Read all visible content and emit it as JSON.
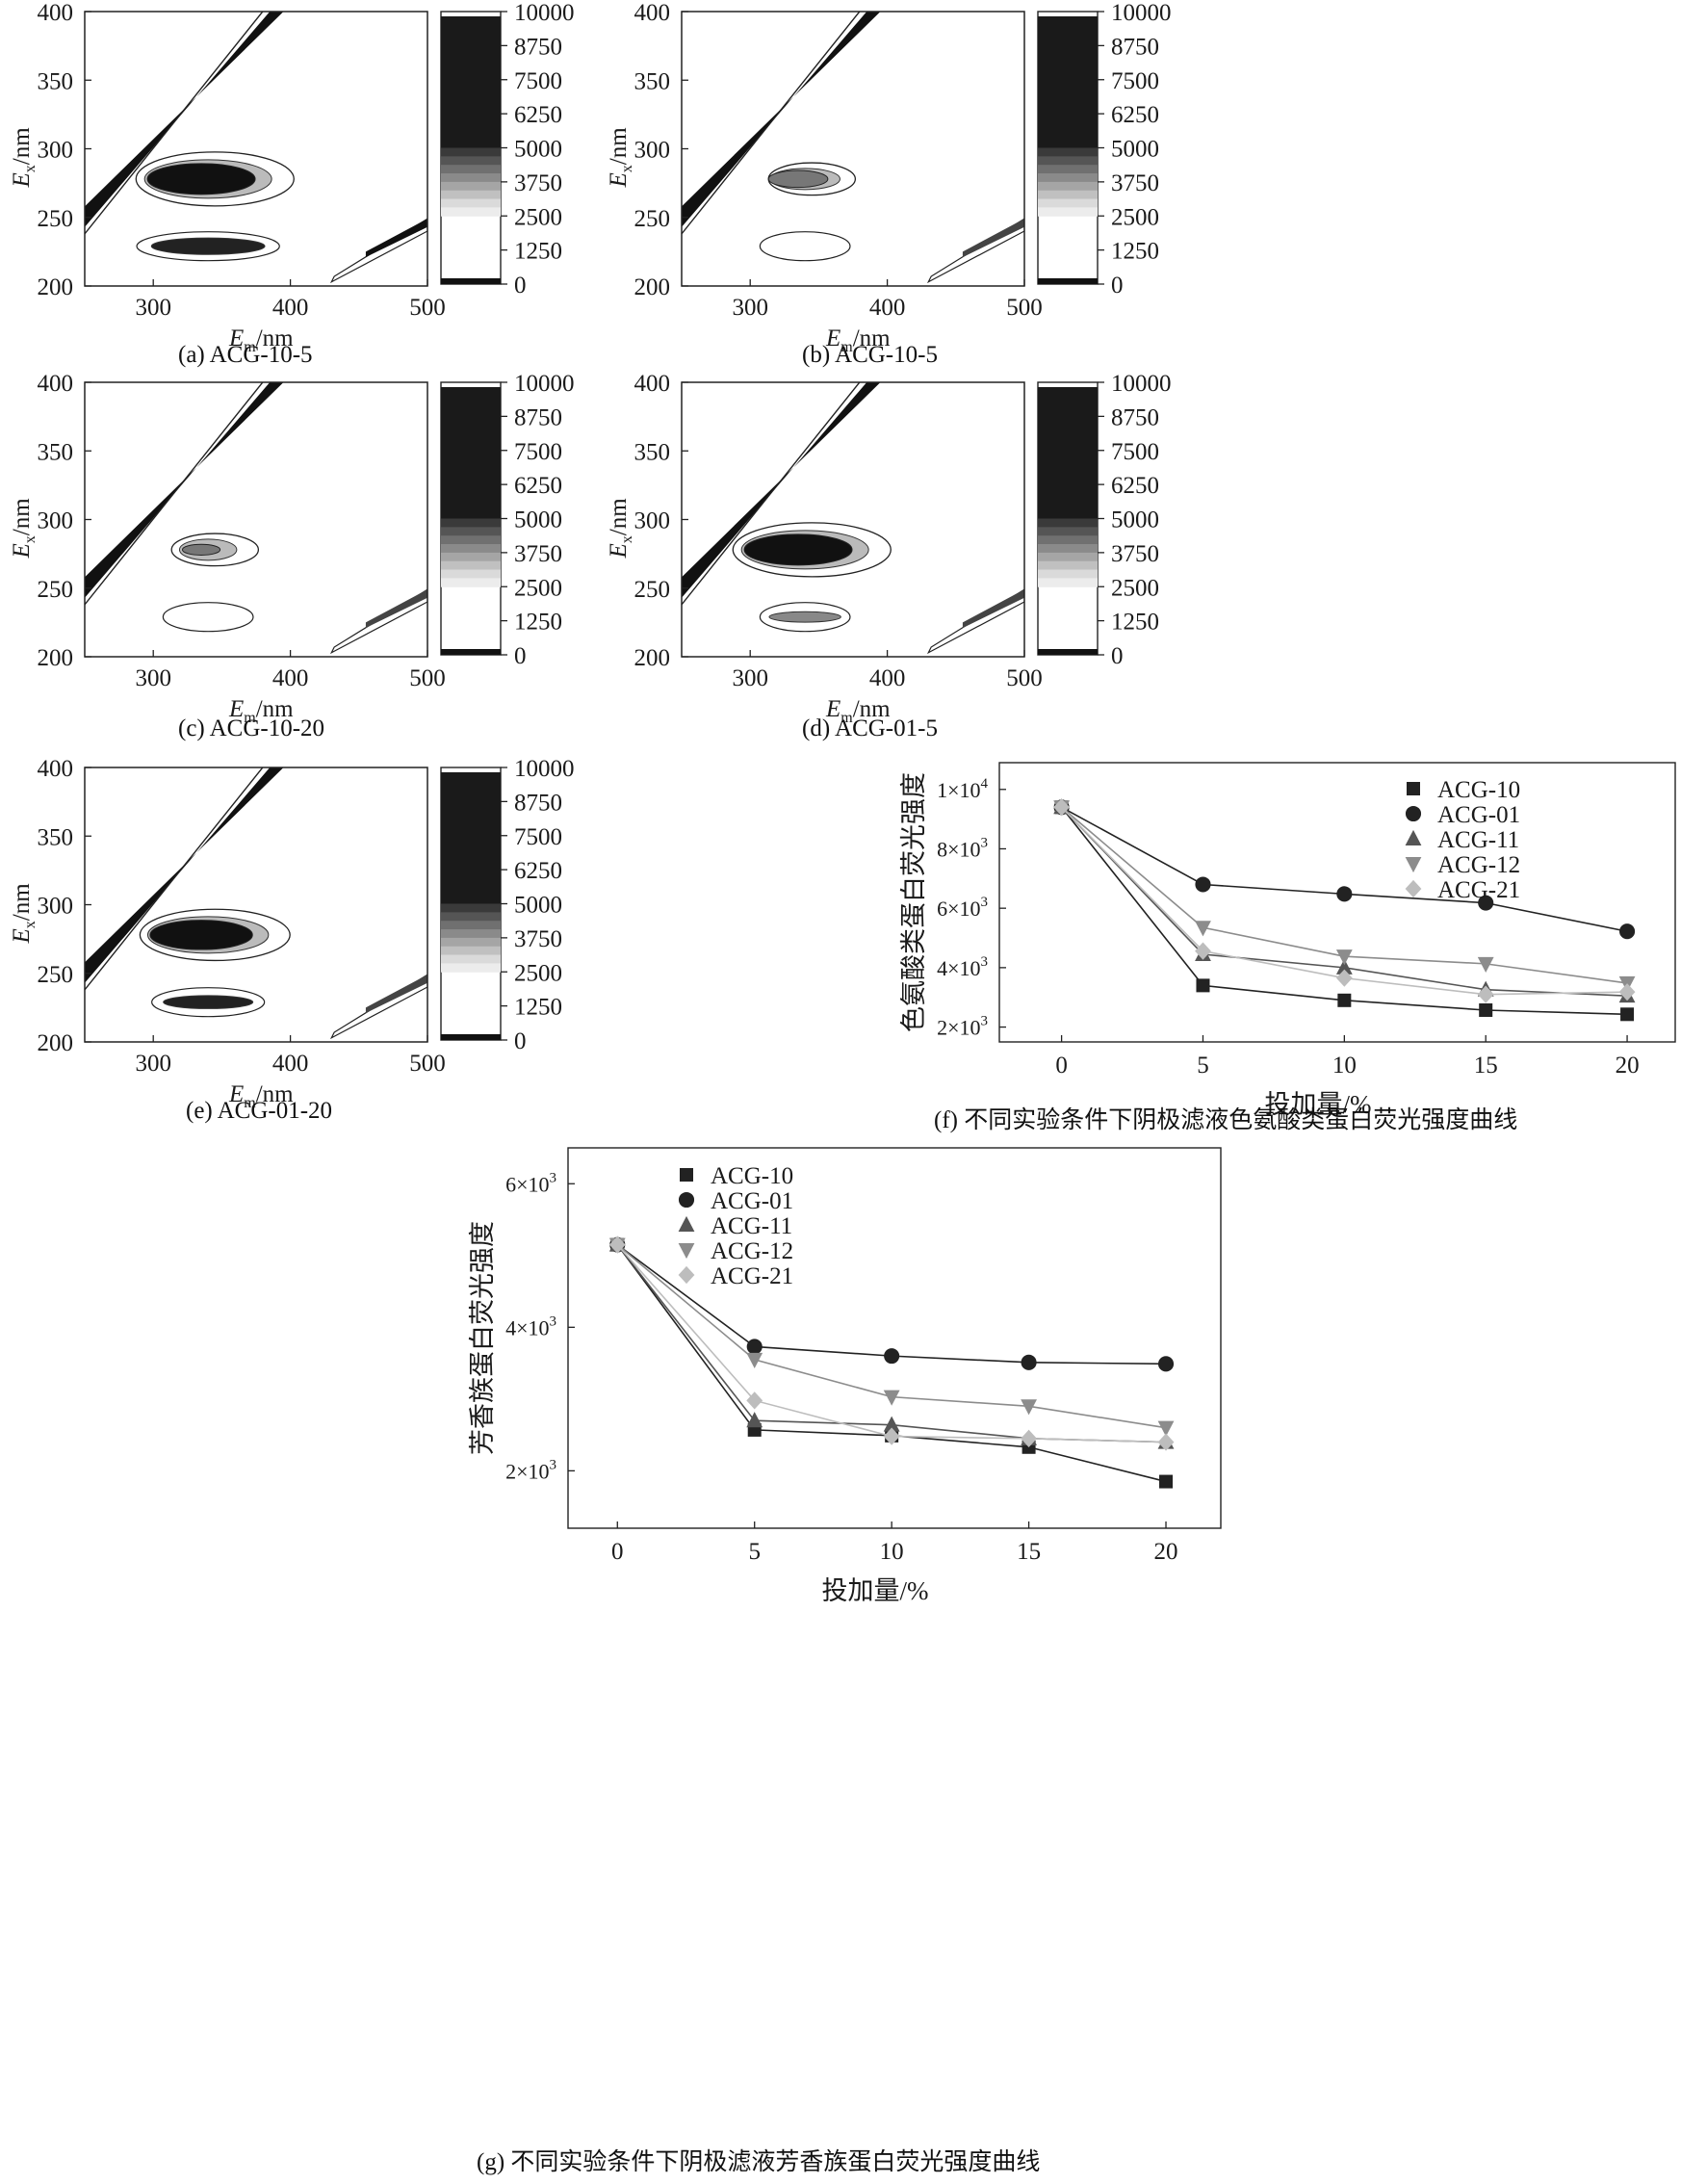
{
  "eem_common": {
    "x_ticks": [
      300,
      400,
      500
    ],
    "y_ticks": [
      200,
      250,
      300,
      350,
      400
    ],
    "x_label_main": "E",
    "x_label_sub": "m",
    "x_label_unit": "/nm",
    "y_label_main": "E",
    "y_label_sub": "x",
    "y_label_unit": "/nm",
    "colorbar_ticks": [
      "10000",
      "8750",
      "7500",
      "6250",
      "5000",
      "3750",
      "2500",
      "1250",
      "0"
    ],
    "x_range": [
      250,
      500
    ],
    "y_range": [
      200,
      400
    ]
  },
  "panels": [
    {
      "id": "a",
      "caption": "(a) ACG-10-5",
      "intensity": 1.0,
      "peakA": 1.0,
      "peakB": 0.95,
      "raman": 0.9
    },
    {
      "id": "b",
      "caption": "(b) ACG-10-5",
      "intensity": 0.5,
      "peakA": 0.55,
      "peakB": 0.25,
      "raman": 0.5
    },
    {
      "id": "c",
      "caption": "(c) ACG-10-20",
      "intensity": 0.35,
      "peakA": 0.35,
      "peakB": 0.2,
      "raman": 0.6
    },
    {
      "id": "d",
      "caption": "(d) ACG-01-5",
      "intensity": 1.0,
      "peakA": 1.0,
      "peakB": 0.6,
      "raman": 0.6
    },
    {
      "id": "e",
      "caption": "(e) ACG-01-20",
      "intensity": 0.9,
      "peakA": 0.95,
      "peakB": 0.75,
      "raman": 0.6
    }
  ],
  "chart_data": [
    {
      "type": "line",
      "id": "f",
      "caption": "(f) 不同实验条件下阴极滤液色氨酸类蛋白荧光强度曲线",
      "xlabel": "投加量/%",
      "ylabel": "色氨酸类蛋白荧光强度",
      "x": [
        0,
        5,
        10,
        15,
        20
      ],
      "x_ticks": [
        "0",
        "5",
        "10",
        "15",
        "20"
      ],
      "y_ticks": [
        {
          "value": 2000,
          "mant": "2×10",
          "exp": "3"
        },
        {
          "value": 4000,
          "mant": "4×10",
          "exp": "3"
        },
        {
          "value": 6000,
          "mant": "6×10",
          "exp": "3"
        },
        {
          "value": 8000,
          "mant": "8×10",
          "exp": "3"
        },
        {
          "value": 10000,
          "mant": "1×10",
          "exp": "4"
        }
      ],
      "xlim": [
        -2.2,
        21.7
      ],
      "ylim": [
        1500,
        10900
      ],
      "series": [
        {
          "name": "ACG-10",
          "marker": "square",
          "color": "#222222",
          "values": [
            9400,
            3400,
            2900,
            2570,
            2430
          ]
        },
        {
          "name": "ACG-01",
          "marker": "circle",
          "color": "#222222",
          "values": [
            9400,
            6800,
            6480,
            6180,
            5220
          ]
        },
        {
          "name": "ACG-11",
          "marker": "triangle-up",
          "color": "#555555",
          "values": [
            9400,
            4450,
            4000,
            3260,
            3050
          ]
        },
        {
          "name": "ACG-12",
          "marker": "triangle-down",
          "color": "#8c8c8c",
          "values": [
            9400,
            5350,
            4380,
            4130,
            3480
          ]
        },
        {
          "name": "ACG-21",
          "marker": "diamond",
          "color": "#bdbdbd",
          "values": [
            9400,
            4560,
            3650,
            3100,
            3180
          ]
        }
      ]
    },
    {
      "type": "line",
      "id": "g",
      "caption": "(g) 不同实验条件下阴极滤液芳香族蛋白荧光强度曲线",
      "xlabel": "投加量/%",
      "ylabel": "芳香族蛋白荧光强度",
      "x": [
        0,
        5,
        10,
        15,
        20
      ],
      "x_ticks": [
        "0",
        "5",
        "10",
        "15",
        "20"
      ],
      "y_ticks": [
        {
          "value": 2000,
          "mant": "2×10",
          "exp": "3"
        },
        {
          "value": 4000,
          "mant": "4×10",
          "exp": "3"
        },
        {
          "value": 6000,
          "mant": "6×10",
          "exp": "3"
        }
      ],
      "xlim": [
        -1.8,
        22.0
      ],
      "ylim": [
        1200,
        6500
      ],
      "series": [
        {
          "name": "ACG-10",
          "marker": "square",
          "color": "#222222",
          "values": [
            5150,
            2570,
            2490,
            2330,
            1850
          ]
        },
        {
          "name": "ACG-01",
          "marker": "circle",
          "color": "#222222",
          "values": [
            5150,
            3730,
            3600,
            3510,
            3490
          ]
        },
        {
          "name": "ACG-11",
          "marker": "triangle-up",
          "color": "#555555",
          "values": [
            5150,
            2700,
            2640,
            2450,
            2400
          ]
        },
        {
          "name": "ACG-12",
          "marker": "triangle-down",
          "color": "#8c8c8c",
          "values": [
            5150,
            3550,
            3030,
            2900,
            2600
          ]
        },
        {
          "name": "ACG-21",
          "marker": "diamond",
          "color": "#bdbdbd",
          "values": [
            5150,
            2980,
            2480,
            2450,
            2400
          ]
        }
      ]
    }
  ]
}
